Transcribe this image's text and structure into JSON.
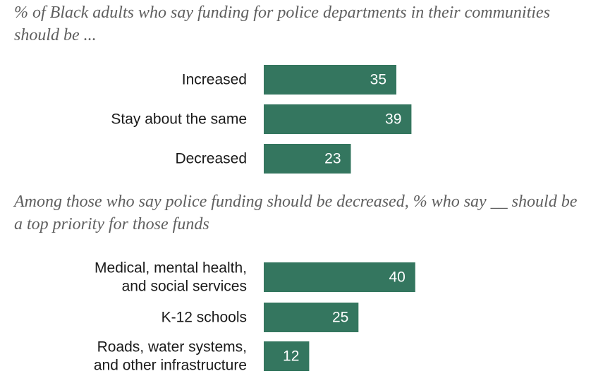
{
  "colors": {
    "bar": "#34765f",
    "subtitle_text": "#5f5f5f",
    "label_text": "#1a1a1a",
    "value_text": "#ffffff"
  },
  "chart_data": [
    {
      "type": "bar",
      "orientation": "horizontal",
      "title": "% of Black adults who say funding for police departments in their communities should be ...",
      "categories": [
        [
          "Increased"
        ],
        [
          "Stay about the same"
        ],
        [
          "Decreased"
        ]
      ],
      "values": [
        35,
        39,
        23
      ],
      "data_labels": [
        "35",
        "39",
        "23"
      ],
      "xlim": [
        0,
        100
      ]
    },
    {
      "type": "bar",
      "orientation": "horizontal",
      "title": "Among those who say police funding should be decreased, % who say __ should be a top priority for those funds",
      "categories": [
        [
          "Medical, mental health,",
          "and social services"
        ],
        [
          "K-12 schools"
        ],
        [
          "Roads, water systems,",
          "and other infrastructure"
        ]
      ],
      "values": [
        40,
        25,
        12
      ],
      "data_labels": [
        "40",
        "25",
        "12"
      ],
      "xlim": [
        0,
        100
      ]
    }
  ]
}
